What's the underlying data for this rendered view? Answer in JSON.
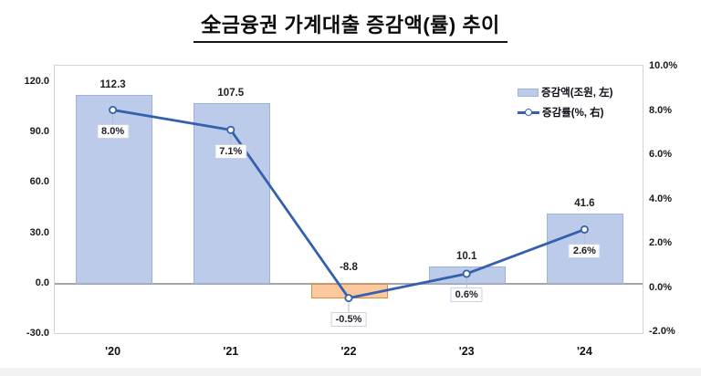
{
  "title": "全금융권 가계대출 증감액(률) 추이",
  "legend": {
    "bar_label": "증감액(조원, 左)",
    "line_label": "증감률(%, 右)"
  },
  "colors": {
    "bar_fill": "#bccbea",
    "bar_border": "#9db3d9",
    "bar_negative_fill": "#fbc99d",
    "bar_negative_border": "#e08a3c",
    "line": "#3560ae",
    "marker_fill": "#ffffff",
    "zero_line": "#a6a6a6",
    "leader_line": "#b3bccb",
    "text": "#1a1a1a"
  },
  "chart_data": {
    "type": "bar",
    "subtype": "combo bar + line, dual axis",
    "title": "全금융권 가계대출 증감액(률) 추이",
    "categories": [
      "'20",
      "'21",
      "'22",
      "'23",
      "'24"
    ],
    "series": [
      {
        "name": "증감액(조원, 左)",
        "type": "bar",
        "axis": "left",
        "values": [
          112.3,
          107.5,
          -8.8,
          10.1,
          41.6
        ],
        "labels": [
          "112.3",
          "107.5",
          "-8.8",
          "10.1",
          "41.6"
        ]
      },
      {
        "name": "증감률(%, 右)",
        "type": "line",
        "axis": "right",
        "values": [
          8.0,
          7.1,
          -0.5,
          0.6,
          2.6
        ],
        "labels": [
          "8.0%",
          "7.1%",
          "-0.5%",
          "0.6%",
          "2.6%"
        ]
      }
    ],
    "left_axis": {
      "min": -30,
      "max": 120,
      "ticks": [
        120,
        90,
        60,
        30,
        0,
        -30
      ],
      "tick_labels": [
        "120.0",
        "90.0",
        "60.0",
        "30.0",
        "0.0",
        "-30.0"
      ]
    },
    "right_axis": {
      "min": -2,
      "max": 10,
      "ticks": [
        10,
        8,
        6,
        4,
        2,
        0,
        -2
      ],
      "tick_labels": [
        "10.0%",
        "8.0%",
        "6.0%",
        "4.0%",
        "2.0%",
        "0.0%",
        "-2.0%"
      ]
    },
    "grid": "off",
    "legend_position": "top-right inside plot"
  }
}
